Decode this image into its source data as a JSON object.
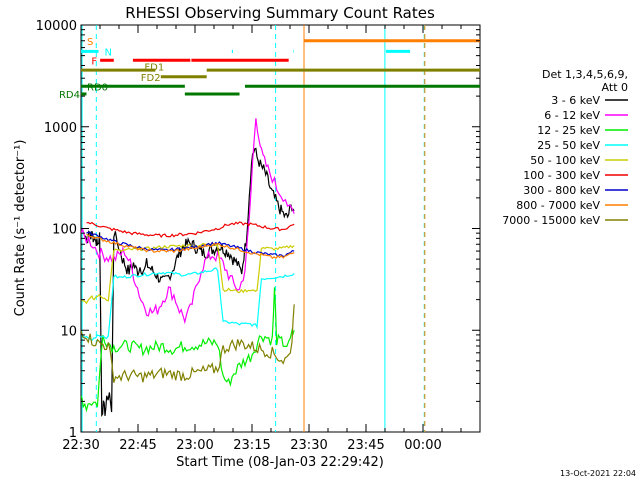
{
  "chart_data": {
    "type": "line",
    "title": "RHESSI Observing Summary Count Rates",
    "xlabel": "Start Time (08-Jan-03 22:29:42)",
    "ylabel": "Count Rate (s⁻¹ detector⁻¹)",
    "y_scale": "log",
    "ylim": [
      1,
      10000
    ],
    "xlim": [
      "22:30",
      "00:15"
    ],
    "x_ticks": [
      "22:30",
      "22:45",
      "23:00",
      "23:15",
      "23:30",
      "23:45",
      "00:00"
    ],
    "y_ticks": [
      "1",
      "10",
      "100",
      "1000",
      "10000"
    ],
    "timestamp": "13-Oct-2021 22:04",
    "legend": {
      "position": "right",
      "header": [
        "Det 1,3,4,5,6,9,",
        "Att 0"
      ],
      "entries": [
        {
          "label": "3 - 6 keV",
          "color": "#000000"
        },
        {
          "label": "6 - 12 keV",
          "color": "#ff00ff"
        },
        {
          "label": "12 - 25 keV",
          "color": "#00ee00"
        },
        {
          "label": "25 - 50 keV",
          "color": "#00ffff"
        },
        {
          "label": "50 - 100 keV",
          "color": "#cccc00"
        },
        {
          "label": "100 - 300 keV",
          "color": "#ee0000"
        },
        {
          "label": "300 - 800 keV",
          "color": "#0000cc"
        },
        {
          "label": "800 - 7000 keV",
          "color": "#ff7f00"
        },
        {
          "label": "7000 - 15000 keV",
          "color": "#808000"
        }
      ]
    },
    "series": [
      {
        "name": "3 - 6 keV",
        "color": "#000000",
        "x": [
          22.78,
          23.1,
          23.2,
          23.4,
          23.6,
          23.62,
          23.85,
          23.95,
          24.05,
          24.2,
          24.4,
          24.55,
          24.7,
          24.85,
          25.1,
          25.3,
          25.5,
          25.8,
          26.1,
          26.3,
          26.5,
          26.7,
          26.9,
          27.1,
          27.3,
          27.5,
          27.7,
          27.9,
          28.1,
          28.3,
          28.5,
          28.7,
          28.9,
          29.1,
          29.3,
          29.5,
          29.7,
          29.9,
          30.1,
          30.3,
          30.5,
          30.8,
          31.0,
          31.2,
          31.4,
          31.6,
          31.8,
          32.0,
          32.2,
          32.4,
          32.6,
          32.8,
          33.0,
          33.2,
          33.4,
          33.6,
          33.8,
          34.0,
          34.2,
          34.4,
          34.6,
          34.8,
          35.0,
          35.2,
          35.4,
          35.6,
          35.8,
          36.0,
          36.2,
          36.4,
          36.6,
          36.8,
          37.0,
          37.2,
          37.4,
          37.6,
          37.8,
          38.0,
          38.2,
          38.4,
          38.6,
          38.8,
          39.0,
          39.2,
          39.4,
          39.6,
          39.8,
          40.0,
          40.2,
          40.4,
          40.6,
          40.8,
          41.0,
          41.2,
          41.4,
          41.6,
          41.8,
          42.0
        ],
        "y": [
          85,
          80,
          95,
          88,
          82,
          78,
          72,
          80,
          68,
          90,
          1.6,
          1.8,
          1.6,
          2.0,
          2.5,
          1.5,
          90,
          75,
          60,
          50,
          45,
          40,
          38,
          42,
          45,
          40,
          38,
          42,
          40,
          38,
          45,
          42,
          40,
          38,
          36,
          34,
          32,
          30,
          30,
          32,
          34,
          38,
          42,
          48,
          55,
          60,
          65,
          68,
          70,
          72,
          70,
          68,
          65,
          62,
          60,
          58,
          58,
          58,
          60,
          62,
          62,
          64,
          65,
          66,
          65,
          62,
          60,
          58,
          55,
          50,
          48,
          45,
          40,
          38,
          55,
          75,
          150,
          320,
          550,
          600,
          500,
          450,
          400,
          380,
          340,
          300,
          250,
          220,
          200,
          180,
          160,
          150,
          140,
          130,
          130,
          150,
          170,
          150
        ]
      },
      {
        "name": "6 - 12 keV",
        "color": "#ff00ff",
        "x": [
          22.5,
          22.8,
          23.2,
          23.6,
          24.0,
          24.5,
          25.0,
          25.5,
          26.0,
          26.5,
          27.0,
          27.5,
          28.0,
          28.5,
          29.0,
          29.5,
          30.0,
          30.5,
          31.0,
          31.5,
          32.0,
          32.5,
          33.0,
          33.5,
          34.0,
          34.5,
          35.0,
          35.5,
          36.0,
          36.5,
          37.0,
          37.5,
          37.9,
          38.2,
          38.5,
          38.8,
          39.0,
          39.3,
          39.6,
          40.0,
          40.4,
          40.8,
          41.2,
          41.6,
          42.0
        ],
        "y": [
          90,
          82,
          78,
          70,
          60,
          55,
          52,
          50,
          55,
          60,
          45,
          30,
          20,
          16,
          15,
          16,
          20,
          25,
          22,
          16,
          13,
          16,
          25,
          40,
          50,
          55,
          52,
          45,
          35,
          28,
          25,
          40,
          120,
          450,
          1250,
          800,
          550,
          450,
          380,
          320,
          250,
          220,
          200,
          150,
          140
        ]
      },
      {
        "name": "12 - 25 keV",
        "color": "#00ee00",
        "x": [
          22.5,
          22.7,
          23.0,
          23.3,
          24.0,
          24.5,
          25.0,
          25.5,
          26.0,
          27.0,
          28.0,
          29.0,
          30.0,
          31.0,
          31.5,
          32.0,
          33.0,
          34.0,
          35.0,
          35.5,
          36.0,
          36.5,
          37.0,
          37.5,
          38.0,
          38.5,
          39.0,
          39.5,
          40.0,
          40.2,
          40.4,
          41.0,
          41.5,
          41.8,
          42.0
        ],
        "y": [
          2.2,
          2.0,
          1.8,
          2.0,
          1.9,
          9.0,
          7.5,
          6.8,
          7.0,
          7.0,
          6.5,
          6.8,
          7.0,
          6.5,
          6.8,
          7.0,
          7.2,
          7.5,
          7.5,
          3.5,
          3.0,
          3.8,
          4.5,
          5.0,
          5.5,
          7.0,
          9.0,
          8.5,
          8.0,
          25,
          8.0,
          7.5,
          7.0,
          9.0,
          10
        ]
      },
      {
        "name": "25 - 50 keV",
        "color": "#00ffff",
        "x": [
          22.5,
          23.0,
          23.5,
          24.0,
          25.0,
          25.5,
          26.0,
          27.0,
          28.0,
          29.0,
          30.0,
          31.0,
          32.0,
          33.0,
          34.0,
          35.0,
          35.5,
          36.0,
          37.0,
          38.0,
          38.6,
          39.0,
          40.0,
          41.0,
          41.5,
          42.0
        ],
        "y": [
          9.0,
          8.5,
          8.0,
          9.0,
          8.5,
          34,
          33,
          34,
          35,
          36,
          37,
          36,
          35,
          36,
          38,
          40,
          12,
          12,
          11.5,
          11.5,
          11,
          32,
          33,
          34,
          35,
          36
        ]
      },
      {
        "name": "50 - 100 keV",
        "color": "#cccc00",
        "x": [
          22.5,
          23.0,
          23.5,
          23.7,
          24.0,
          25.0,
          25.5,
          26.0,
          27.0,
          28.0,
          29.0,
          30.0,
          31.0,
          32.0,
          33.0,
          34.0,
          35.0,
          35.5,
          36.0,
          37.0,
          38.0,
          38.6,
          39.0,
          40.0,
          41.0,
          42.0
        ],
        "y": [
          20,
          19,
          21,
          20,
          22,
          20,
          62,
          60,
          62,
          63,
          64,
          66,
          67,
          68,
          68,
          70,
          70,
          25,
          25,
          24,
          25,
          24,
          65,
          63,
          64,
          68
        ]
      },
      {
        "name": "100 - 300 keV",
        "color": "#ee0000",
        "x": [
          23.0,
          24.0,
          25.0,
          26.0,
          27.0,
          28.0,
          29.0,
          30.0,
          31.0,
          32.0,
          33.0,
          34.0,
          35.0,
          36.0,
          37.0,
          38.0,
          39.0,
          40.0,
          41.0,
          42.0
        ],
        "y": [
          115,
          108,
          100,
          95,
          90,
          88,
          86,
          85,
          86,
          88,
          90,
          95,
          100,
          110,
          112,
          110,
          105,
          100,
          98,
          110
        ]
      },
      {
        "name": "300 - 800 keV",
        "color": "#0000cc",
        "x": [
          23.0,
          24.0,
          25.0,
          26.0,
          27.0,
          28.0,
          29.0,
          30.0,
          31.0,
          32.0,
          33.0,
          34.0,
          35.0,
          36.0,
          37.0,
          38.0,
          39.0,
          40.0,
          41.0,
          42.0
        ],
        "y": [
          92,
          85,
          78,
          72,
          68,
          64,
          62,
          61,
          62,
          64,
          66,
          70,
          72,
          68,
          64,
          60,
          57,
          55,
          54,
          60
        ]
      },
      {
        "name": "800 - 7000 keV",
        "color": "#ff7f00",
        "x": [
          23.0,
          24.0,
          25.0,
          26.0,
          27.0,
          28.0,
          29.0,
          30.0,
          31.0,
          32.0,
          33.0,
          34.0,
          35.0,
          36.0,
          37.0,
          38.0,
          39.0,
          40.0,
          41.0,
          42.0
        ],
        "y": [
          88,
          80,
          75,
          70,
          66,
          62,
          60,
          60,
          60,
          62,
          64,
          68,
          70,
          66,
          62,
          58,
          55,
          52,
          52,
          58
        ]
      },
      {
        "name": "7000 - 15000 keV",
        "color": "#808000",
        "x": [
          22.5,
          23.0,
          23.5,
          24.0,
          25.0,
          25.5,
          26.0,
          27.0,
          28.0,
          29.0,
          30.0,
          31.0,
          32.0,
          33.0,
          34.0,
          35.0,
          35.5,
          36.0,
          37.0,
          38.0,
          39.0,
          40.0,
          40.5,
          41.0,
          41.5,
          41.8,
          42.0
        ],
        "y": [
          10,
          9,
          8,
          7.5,
          7,
          3.5,
          3.5,
          3.6,
          3.5,
          3.6,
          3.8,
          3.7,
          3.6,
          3.8,
          4.0,
          4.2,
          6.5,
          7.0,
          7.5,
          7.0,
          6.5,
          6.0,
          5.5,
          5.0,
          5.5,
          8.0,
          18
        ]
      }
    ],
    "flags": [
      {
        "label": "S",
        "label_color": "#ff7f00",
        "color": "#00ffff",
        "y": 5500,
        "segments": [
          [
            22.5,
            23.7
          ]
        ],
        "label_side": "left",
        "label_y": 7000
      },
      {
        "label": "N",
        "label_color": "#00ffff",
        "color": "#00ffff",
        "y": 5500,
        "segments": [
          [
            23.7,
            24.1
          ],
          [
            36.3,
            36.4
          ],
          [
            41.9,
            41.95
          ],
          [
            50.4,
            52.6
          ]
        ],
        "label_side": "right",
        "label_y": 5500
      },
      {
        "label": "F",
        "label_color": "#ff0000",
        "color": "#ff0000",
        "y": 4500,
        "segments": [
          [
            24.25,
            25.5
          ],
          [
            27.25,
            32.5
          ],
          [
            32.6,
            41.5
          ]
        ],
        "label_side": "left",
        "label_y": 4500
      },
      {
        "label": "FD1",
        "label_color": "#808000",
        "color": "#808000",
        "y": 3600,
        "segments": [
          [
            22.5,
            29.3
          ],
          [
            34.0,
            59.0
          ]
        ],
        "label_side": "left",
        "label_y": 3900
      },
      {
        "label": "FD2",
        "label_color": "#808000",
        "color": "#808000",
        "y": 3100,
        "segments": [
          [
            29.8,
            34.0
          ]
        ],
        "label_side": "left",
        "label_y": 3100
      },
      {
        "label": "RD0",
        "label_color": "#007700",
        "color": "#007700",
        "y": 2500,
        "segments": [
          [
            22.5,
            32.0
          ],
          [
            37.5,
            59.0
          ]
        ],
        "label_side": "left",
        "label_y": 2500
      },
      {
        "label": "RD4",
        "label_color": "#007700",
        "color": "#007700",
        "y": 2100,
        "segments": [
          [
            22.5,
            23.0
          ],
          [
            32.0,
            37.0
          ]
        ],
        "label_side": "left",
        "label_y": 2100
      },
      {
        "label": "",
        "label_color": "#ff7f00",
        "color": "#ff7f00",
        "y": 7000,
        "segments": [
          [
            42.9,
            59.0
          ]
        ],
        "label_side": "none",
        "label_y": 7000
      }
    ],
    "vlines": [
      {
        "x": 22.6,
        "color": "#00ffff",
        "style": "solid"
      },
      {
        "x": 23.9,
        "color": "#00ffff",
        "style": "dashed"
      },
      {
        "x": 42.9,
        "color": "#ff7f00",
        "style": "solid"
      },
      {
        "x": 50.3,
        "color": "#00ffff",
        "style": "solid"
      },
      {
        "x": 53.9,
        "color": "#00ffff",
        "style": "dashed"
      },
      {
        "x": 53.95,
        "color": "#ff7f00",
        "style": "dashed"
      },
      {
        "x": 40.3,
        "color": "#00ffff",
        "style": "dashed"
      }
    ]
  }
}
